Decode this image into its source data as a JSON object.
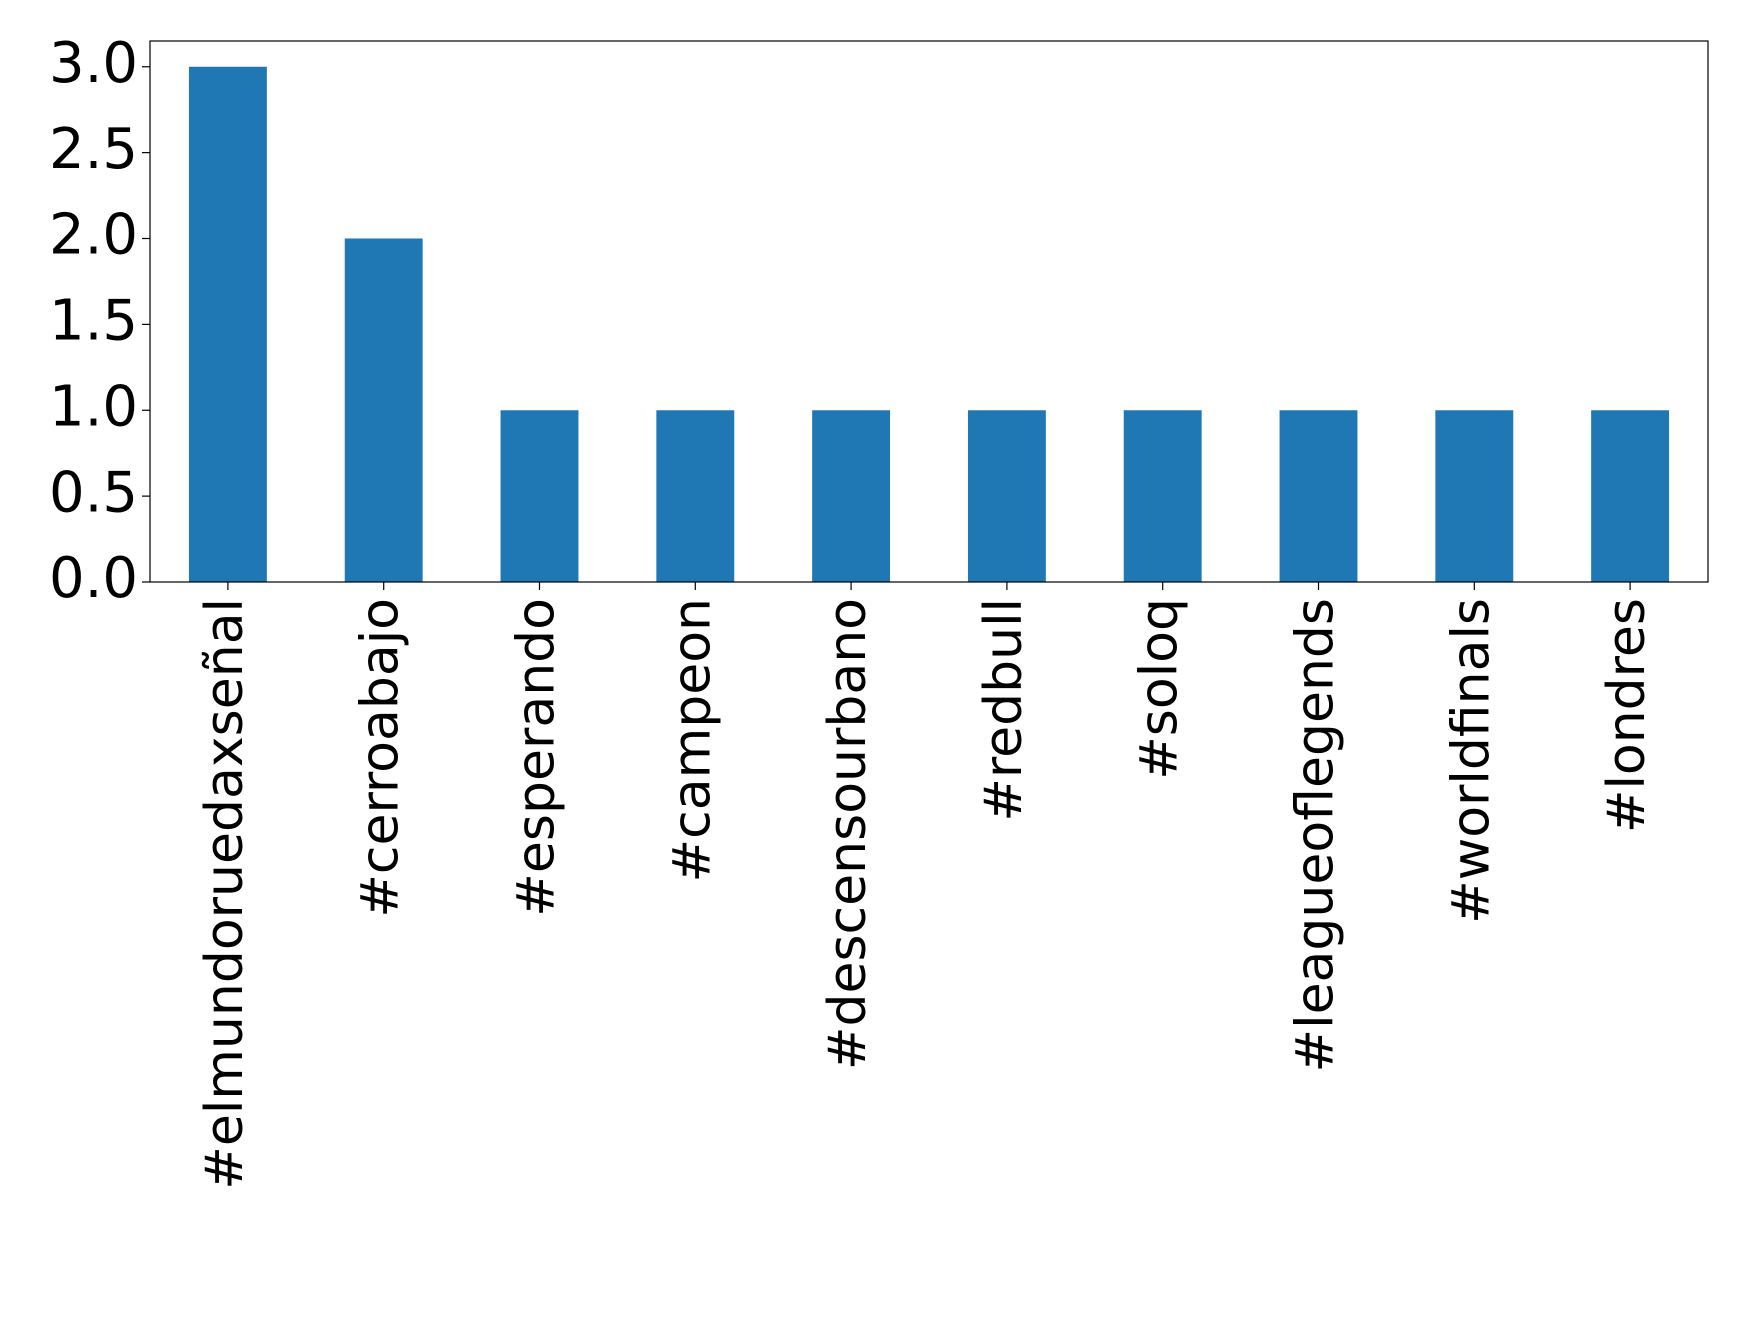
{
  "chart_data": {
    "type": "bar",
    "categories": [
      "#elmundoruedaxseñal",
      "#cerroabajo",
      "#esperando",
      "#campeon",
      "#descensourbano",
      "#redbull",
      "#soloq",
      "#leagueoflegends",
      "#worldfinals",
      "#londres"
    ],
    "values": [
      3,
      2,
      1,
      1,
      1,
      1,
      1,
      1,
      1,
      1
    ],
    "color": "#1f77b4",
    "ylim": [
      0,
      3.15
    ],
    "yticks": [
      {
        "value": 0,
        "label": "0.0"
      },
      {
        "value": 0.5,
        "label": "0.5"
      },
      {
        "value": 1,
        "label": "1.0"
      },
      {
        "value": 1.5,
        "label": "1.5"
      },
      {
        "value": 2,
        "label": "2.0"
      },
      {
        "value": 2.5,
        "label": "2.5"
      },
      {
        "value": 3,
        "label": "3.0"
      }
    ],
    "grid": false
  }
}
